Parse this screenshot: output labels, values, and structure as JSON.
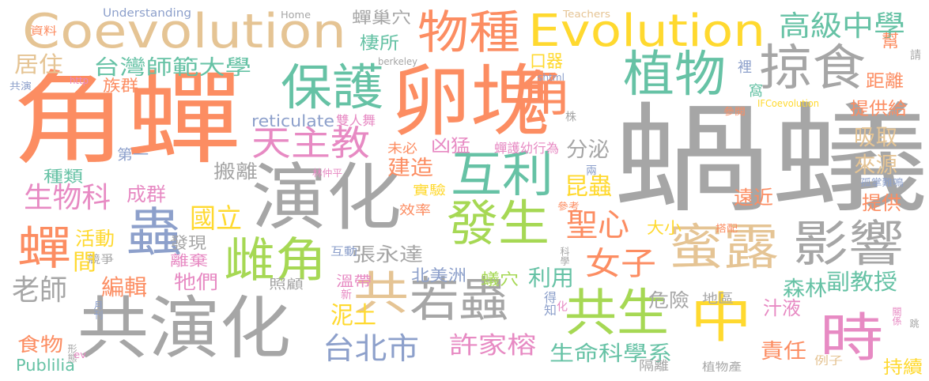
{
  "palette": {
    "gray": "#a6a6a6",
    "orange": "#fc8d62",
    "green": "#66c2a5",
    "blue": "#8da0cb",
    "pink": "#e78ac3",
    "lime": "#a6d854",
    "yellow": "#ffd92f",
    "tan": "#e5c494"
  },
  "words": [
    {
      "text": "蝸蟻",
      "color": "#a6a6a6"
    },
    {
      "text": "角蟬",
      "color": "#fc8d62"
    },
    {
      "text": "卵塊",
      "color": "#fc8d62"
    },
    {
      "text": "演化",
      "color": "#a6a6a6"
    },
    {
      "text": "共演化",
      "color": "#a6a6a6"
    },
    {
      "text": "Coevolution",
      "color": "#e5c494"
    },
    {
      "text": "Evolution",
      "color": "#ffd92f"
    },
    {
      "text": "物種",
      "color": "#fc8d62"
    },
    {
      "text": "保護",
      "color": "#66c2a5"
    },
    {
      "text": "植物",
      "color": "#66c2a5"
    },
    {
      "text": "掠食",
      "color": "#a6a6a6"
    },
    {
      "text": "角",
      "color": "#fc8d62"
    },
    {
      "text": "蟲",
      "color": "#8da0cb"
    },
    {
      "text": "蟬",
      "color": "#fc8d62"
    },
    {
      "text": "互利",
      "color": "#66c2a5"
    },
    {
      "text": "發生",
      "color": "#a6d854"
    },
    {
      "text": "蜜露",
      "color": "#e5c494"
    },
    {
      "text": "影響",
      "color": "#a6a6a6"
    },
    {
      "text": "中",
      "color": "#ffd92f"
    },
    {
      "text": "時",
      "color": "#e78ac3"
    },
    {
      "text": "共生",
      "color": "#a6d854"
    },
    {
      "text": "若蟲",
      "color": "#a6a6a6"
    },
    {
      "text": "共",
      "color": "#e5c494"
    },
    {
      "text": "雌角",
      "color": "#a6d854"
    },
    {
      "text": "天主教",
      "color": "#e78ac3"
    },
    {
      "text": "高級中學",
      "color": "#66c2a5"
    },
    {
      "text": "台灣師範大學",
      "color": "#66c2a5"
    },
    {
      "text": "台北市",
      "color": "#8da0cb"
    },
    {
      "text": "許家榕",
      "color": "#e78ac3"
    },
    {
      "text": "生命科學系",
      "color": "#66c2a5"
    },
    {
      "text": "女子",
      "color": "#fc8d62"
    },
    {
      "text": "聖心",
      "color": "#fc8d62"
    },
    {
      "text": "國立",
      "color": "#ffd92f"
    },
    {
      "text": "生物科",
      "color": "#e78ac3"
    },
    {
      "text": "老師",
      "color": "#a6a6a6"
    },
    {
      "text": "建造",
      "color": "#fc8d62"
    },
    {
      "text": "昆蟲",
      "color": "#ffd92f"
    },
    {
      "text": "分泌",
      "color": "#a6a6a6"
    },
    {
      "text": "吸取",
      "color": "#e5c494"
    },
    {
      "text": "來源",
      "color": "#e5c494"
    },
    {
      "text": "提供",
      "color": "#fc8d62"
    },
    {
      "text": "提供給",
      "color": "#fc8d62"
    },
    {
      "text": "距離",
      "color": "#fc8d62"
    },
    {
      "text": "副教授",
      "color": "#66c2a5"
    },
    {
      "text": "森林",
      "color": "#66c2a5"
    },
    {
      "text": "汁液",
      "color": "#e78ac3"
    },
    {
      "text": "責任",
      "color": "#fc8d62"
    },
    {
      "text": "持續",
      "color": "#ffd92f"
    },
    {
      "text": "危險",
      "color": "#a6a6a6"
    },
    {
      "text": "遠近",
      "color": "#fc8d62"
    },
    {
      "text": "大小",
      "color": "#ffd92f"
    },
    {
      "text": "利用",
      "color": "#66c2a5"
    },
    {
      "text": "張永達",
      "color": "#a6a6a6"
    },
    {
      "text": "泥土",
      "color": "#ffd92f"
    },
    {
      "text": "編輯",
      "color": "#fc8d62"
    },
    {
      "text": "牠們",
      "color": "#e78ac3"
    },
    {
      "text": "活動",
      "color": "#ffd92f"
    },
    {
      "text": "成群",
      "color": "#e78ac3"
    },
    {
      "text": "搬離",
      "color": "#a6a6a6"
    },
    {
      "text": "凶猛",
      "color": "#e78ac3"
    },
    {
      "text": "棲所",
      "color": "#66c2a5"
    },
    {
      "text": "蟬巢穴",
      "color": "#a6a6a6"
    },
    {
      "text": "口器",
      "color": "#ffd92f"
    },
    {
      "text": "族群",
      "color": "#fc8d62"
    },
    {
      "text": "居住",
      "color": "#e5c494"
    },
    {
      "text": "種類",
      "color": "#66c2a5"
    },
    {
      "text": "食物",
      "color": "#fc8d62"
    },
    {
      "text": "Publilia",
      "color": "#66c2a5"
    },
    {
      "text": "reticulate",
      "color": "#8da0cb"
    },
    {
      "text": "雙人舞",
      "color": "#e78ac3"
    },
    {
      "text": "第一",
      "color": "#8da0cb"
    },
    {
      "text": "發現",
      "color": "#a6a6a6"
    },
    {
      "text": "離棄",
      "color": "#e78ac3"
    },
    {
      "text": "北美洲",
      "color": "#8da0cb"
    },
    {
      "text": "溫帶",
      "color": "#e78ac3"
    },
    {
      "text": "照顧",
      "color": "#a6a6a6"
    },
    {
      "text": "蟻穴",
      "color": "#a6d854"
    },
    {
      "text": "實驗",
      "color": "#ffd92f"
    },
    {
      "text": "效率",
      "color": "#fc8d62"
    },
    {
      "text": "蟬護幼行為",
      "color": "#e78ac3"
    },
    {
      "text": "未必",
      "color": "#fc8d62"
    },
    {
      "text": "林仲平",
      "color": "#e78ac3"
    },
    {
      "text": "互動",
      "color": "#8da0cb"
    },
    {
      "text": "競爭",
      "color": "#a6a6a6"
    },
    {
      "text": "資料",
      "color": "#fc8d62"
    },
    {
      "text": "Understanding",
      "color": "#8da0cb"
    },
    {
      "text": "Home",
      "color": "#a6a6a6"
    },
    {
      "text": "Teachers",
      "color": "#e5c494"
    },
    {
      "text": "berkeley",
      "color": "#a6a6a6"
    },
    {
      "text": "shtml",
      "color": "#8da0cb"
    },
    {
      "text": "http",
      "color": "#e78ac3"
    },
    {
      "text": "IFCoevolution",
      "color": "#ffd92f"
    },
    {
      "text": "共演",
      "color": "#8da0cb"
    },
    {
      "text": "參閱",
      "color": "#fc8d62"
    },
    {
      "text": "參考",
      "color": "#fc8d62"
    },
    {
      "text": "搭配",
      "color": "#fc8d62"
    },
    {
      "text": "孤掌難鳴",
      "color": "#8da0cb"
    },
    {
      "text": "地區",
      "color": "#a6a6a6"
    },
    {
      "text": "隔離",
      "color": "#a6a6a6"
    },
    {
      "text": "植物產",
      "color": "#a6a6a6"
    },
    {
      "text": "例子",
      "color": "#e5c494"
    },
    {
      "text": "關係",
      "color": "#e78ac3"
    },
    {
      "text": "跳",
      "color": "#a6a6a6"
    },
    {
      "text": "請",
      "color": "#a6a6a6"
    },
    {
      "text": "幫",
      "color": "#fc8d62"
    },
    {
      "text": "裡",
      "color": "#8da0cb"
    },
    {
      "text": "窩",
      "color": "#66c2a5"
    },
    {
      "text": "株",
      "color": "#a6a6a6"
    },
    {
      "text": "兩",
      "color": "#8da0cb"
    },
    {
      "text": "新",
      "color": "#e78ac3"
    },
    {
      "text": "得知",
      "color": "#8da0cb"
    },
    {
      "text": "化",
      "color": "#e78ac3"
    },
    {
      "text": "科學",
      "color": "#a6a6a6"
    },
    {
      "text": "形態",
      "color": "#a6a6a6"
    },
    {
      "text": "月刊",
      "color": "#8da0cb"
    },
    {
      "text": "ev",
      "color": "#e78ac3"
    },
    {
      "text": "間",
      "color": "#ffd92f"
    },
    {
      "text": "下",
      "color": "#e78ac3"
    }
  ]
}
